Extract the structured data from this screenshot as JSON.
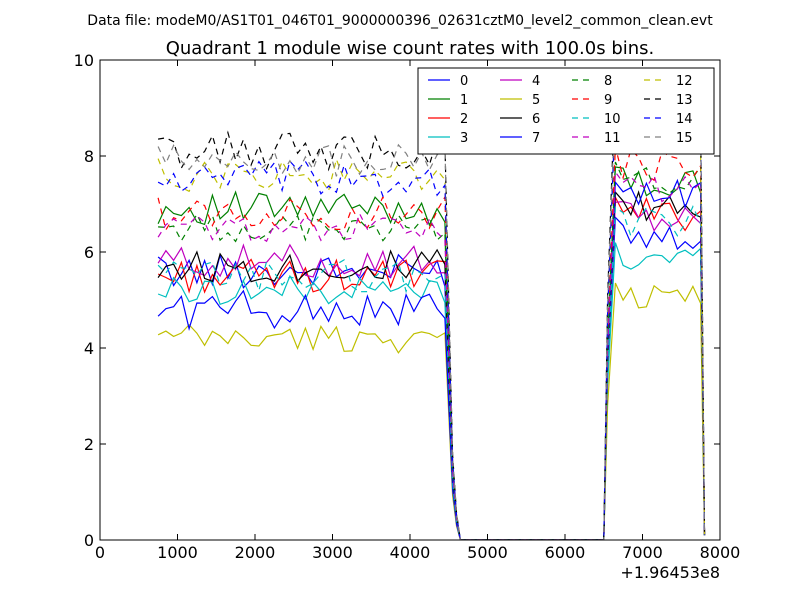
{
  "chart_data": {
    "type": "line",
    "suptitle": "Data file: modeM0/AS1T01_046T01_9000000396_02631cztM0_level2_common_clean.evt",
    "title": "Quadrant 1 module wise count rates with 100.0s bins.",
    "xlabel": "",
    "ylabel": "",
    "xlim": [
      0,
      8000
    ],
    "ylim": [
      0,
      10
    ],
    "x_offset_label": "+1.96453e8",
    "xticks": [
      0,
      1000,
      2000,
      3000,
      4000,
      5000,
      6000,
      7000,
      8000
    ],
    "xtick_labels": [
      "0",
      "1000",
      "2000",
      "3000",
      "4000",
      "5000",
      "6000",
      "7000",
      "8000"
    ],
    "yticks": [
      0,
      2,
      4,
      6,
      8,
      10
    ],
    "ytick_labels": [
      "0",
      "2",
      "4",
      "6",
      "8",
      "10"
    ],
    "legend_position": "top-right",
    "legend_columns": 4,
    "x_segments": [
      {
        "start": 750,
        "step": 100,
        "count": 38
      },
      {
        "start": 4550,
        "step": 100,
        "count": 20
      },
      {
        "start": 6550,
        "step": 100,
        "count": 13
      }
    ],
    "series": [
      {
        "name": "0",
        "color": "#0000ff",
        "dash": "solid",
        "level1": 5.6,
        "level2": 6.4,
        "amp": 0.35
      },
      {
        "name": "1",
        "color": "#008000",
        "dash": "solid",
        "level1": 6.9,
        "level2": 7.4,
        "amp": 0.35
      },
      {
        "name": "2",
        "color": "#ff0000",
        "dash": "solid",
        "level1": 5.5,
        "level2": 6.8,
        "amp": 0.35
      },
      {
        "name": "3",
        "color": "#00bfbf",
        "dash": "solid",
        "level1": 5.2,
        "level2": 5.9,
        "amp": 0.3
      },
      {
        "name": "4",
        "color": "#bf00bf",
        "dash": "solid",
        "level1": 5.8,
        "level2": 6.7,
        "amp": 0.35
      },
      {
        "name": "5",
        "color": "#bfbf00",
        "dash": "solid",
        "level1": 4.2,
        "level2": 5.1,
        "amp": 0.3
      },
      {
        "name": "6",
        "color": "#000000",
        "dash": "solid",
        "level1": 5.7,
        "level2": 6.9,
        "amp": 0.35
      },
      {
        "name": "7",
        "color": "#0000ff",
        "dash": "solid",
        "level1": 4.8,
        "level2": 7.1,
        "amp": 0.4
      },
      {
        "name": "8",
        "color": "#008000",
        "dash": "dashed",
        "level1": 6.5,
        "level2": 7.5,
        "amp": 0.3
      },
      {
        "name": "9",
        "color": "#ff0000",
        "dash": "dashed",
        "level1": 6.8,
        "level2": 7.8,
        "amp": 0.35
      },
      {
        "name": "10",
        "color": "#00bfbf",
        "dash": "dashed",
        "level1": 5.5,
        "level2": 6.6,
        "amp": 0.35
      },
      {
        "name": "11",
        "color": "#bf00bf",
        "dash": "dashed",
        "level1": 6.5,
        "level2": 7.3,
        "amp": 0.3
      },
      {
        "name": "12",
        "color": "#bfbf00",
        "dash": "dashed",
        "level1": 7.6,
        "level2": 8.5,
        "amp": 0.35
      },
      {
        "name": "13",
        "color": "#000000",
        "dash": "dashed",
        "level1": 8.1,
        "level2": 9.2,
        "amp": 0.4
      },
      {
        "name": "14",
        "color": "#0000ff",
        "dash": "dashed",
        "level1": 7.5,
        "level2": 8.6,
        "amp": 0.4
      },
      {
        "name": "15",
        "color": "#808080",
        "dash": "dashed",
        "level1": 7.9,
        "level2": 8.9,
        "amp": 0.35
      }
    ]
  }
}
